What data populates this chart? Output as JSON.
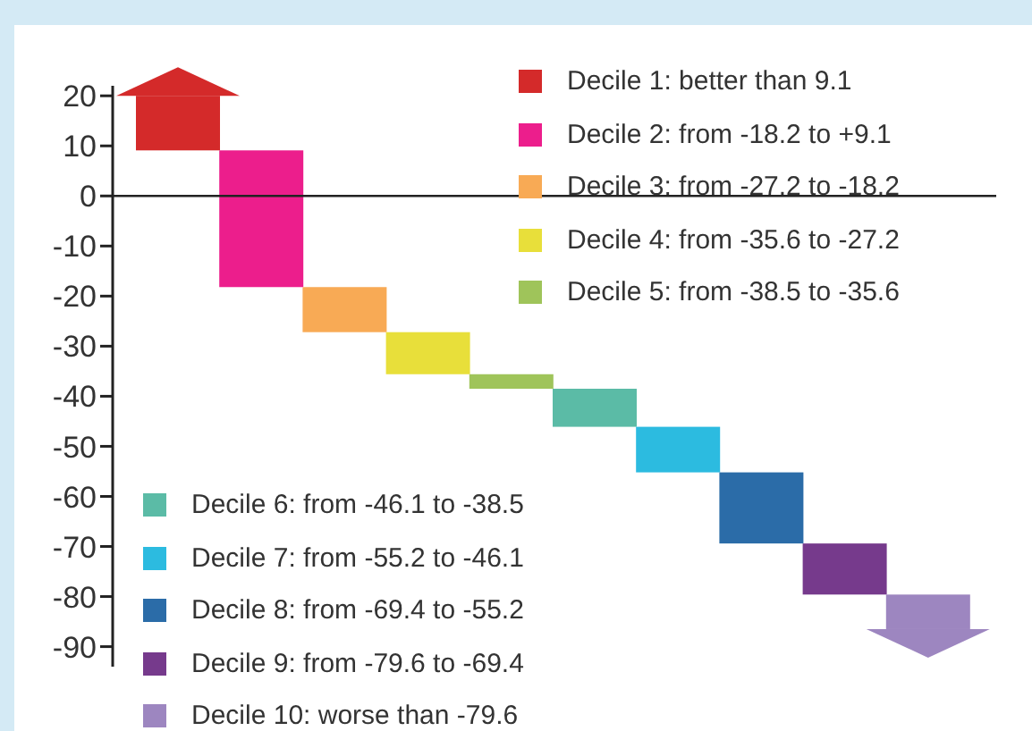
{
  "chart_data": {
    "type": "bar",
    "categories": [
      null,
      null,
      null,
      null,
      null,
      null,
      null,
      null,
      null,
      null
    ],
    "series": [
      {
        "name": "Decile 1: better than 9.1",
        "color": "#d42a2a",
        "values": [
          10.9,
          null,
          null,
          null,
          null,
          null,
          null,
          null,
          null,
          null
        ],
        "base": [
          9.1,
          null,
          null,
          null,
          null,
          null,
          null,
          null,
          null,
          null
        ]
      },
      {
        "name": "Decile 2: from -18.2 to +9.1",
        "color": "#ec1e8c",
        "values": [
          null,
          27.3,
          null,
          null,
          null,
          null,
          null,
          null,
          null,
          null
        ],
        "base": [
          null,
          -18.2,
          null,
          null,
          null,
          null,
          null,
          null,
          null,
          null
        ]
      },
      {
        "name": "Decile 3: from -27.2 to -18.2",
        "color": "#f8aa55",
        "values": [
          null,
          null,
          9,
          null,
          null,
          null,
          null,
          null,
          null,
          null
        ],
        "base": [
          null,
          null,
          -27.2,
          null,
          null,
          null,
          null,
          null,
          null,
          null
        ]
      },
      {
        "name": "Decile 4: from -35.6 to -27.2",
        "color": "#e8df3a",
        "values": [
          null,
          null,
          null,
          8.4,
          null,
          null,
          null,
          null,
          null,
          null
        ],
        "base": [
          null,
          null,
          null,
          -35.6,
          null,
          null,
          null,
          null,
          null,
          null
        ]
      },
      {
        "name": "Decile 5: from -38.5 to -35.6",
        "color": "#9fc45a",
        "values": [
          null,
          null,
          null,
          null,
          2.9,
          null,
          null,
          null,
          null,
          null
        ],
        "base": [
          null,
          null,
          null,
          null,
          -38.5,
          null,
          null,
          null,
          null,
          null
        ]
      },
      {
        "name": "Decile 6: from -46.1 to -38.5",
        "color": "#5bbba6",
        "values": [
          null,
          null,
          null,
          null,
          null,
          7.6,
          null,
          null,
          null,
          null
        ],
        "base": [
          null,
          null,
          null,
          null,
          null,
          -46.1,
          null,
          null,
          null,
          null
        ]
      },
      {
        "name": "Decile 7: from -55.2 to -46.1",
        "color": "#2cbbe0",
        "values": [
          null,
          null,
          null,
          null,
          null,
          null,
          9.1,
          null,
          null,
          null
        ],
        "base": [
          null,
          null,
          null,
          null,
          null,
          null,
          -55.2,
          null,
          null,
          null
        ]
      },
      {
        "name": "Decile 8: from -69.4 to -55.2",
        "color": "#2b6ca8",
        "values": [
          null,
          null,
          null,
          null,
          null,
          null,
          null,
          14.2,
          null,
          null
        ],
        "base": [
          null,
          null,
          null,
          null,
          null,
          null,
          null,
          -69.4,
          null,
          null
        ]
      },
      {
        "name": "Decile 9: from -79.6 to -69.4",
        "color": "#763a8c",
        "values": [
          null,
          null,
          null,
          null,
          null,
          null,
          null,
          null,
          10.2,
          null
        ],
        "base": [
          null,
          null,
          null,
          null,
          null,
          null,
          null,
          null,
          -79.6,
          null
        ]
      },
      {
        "name": "Decile 10: worse than -79.6",
        "color": "#9d86c0",
        "values": [
          null,
          null,
          null,
          null,
          null,
          null,
          null,
          null,
          null,
          -6.9
        ],
        "base": [
          null,
          null,
          null,
          null,
          null,
          null,
          null,
          null,
          null,
          -79.6
        ]
      }
    ],
    "ylim": [
      -94,
      22
    ],
    "yticks": [
      20,
      10,
      0,
      -10,
      -20,
      -30,
      -40,
      -50,
      -60,
      -70,
      -80,
      -90
    ],
    "ref_lines": [
      {
        "axis": "y",
        "value": 0,
        "color": "#222222"
      }
    ],
    "grid": false,
    "legend": "bottom left"
  }
}
